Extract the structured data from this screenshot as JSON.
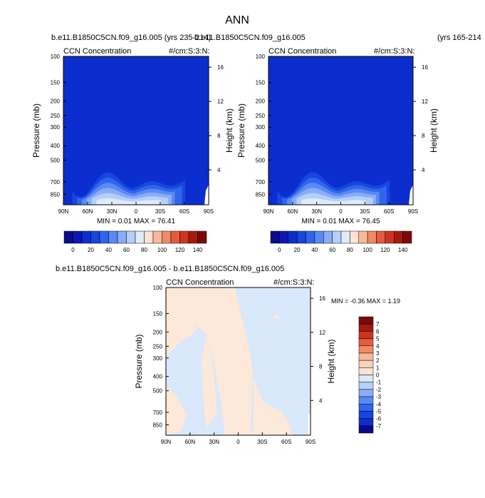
{
  "page": {
    "title": "ANN",
    "left_header": "b.e11.B1850C5CN.f09_g16.005 (yrs 235-214)",
    "right_header": "b.e11.B1850C5CN.f09_g16.005",
    "right_header_years": "(yrs 165-214",
    "diff_header": "b.e11.B1850C5CN.f09_g16.005 - b.e11.B1850C5CN.f09_g16.005"
  },
  "chart_data": [
    {
      "type": "heatmap",
      "panel": "case-1",
      "title": "CCN Concentration",
      "units": "#/cm:S:3:N:",
      "ylabel": "Pressure (mb)",
      "ylabel_right": "Height (km)",
      "x_ticks": [
        "90N",
        "60N",
        "30N",
        "0",
        "30S",
        "60S",
        "90S"
      ],
      "x": [
        90,
        60,
        30,
        0,
        -30,
        -60,
        -90
      ],
      "y_ticks": [
        "100",
        "150",
        "200",
        "250",
        "300",
        "400",
        "500",
        "700",
        "850"
      ],
      "y": [
        100,
        150,
        200,
        250,
        300,
        400,
        500,
        700,
        850
      ],
      "height_ticks": [
        "16",
        "12",
        "8",
        "4"
      ],
      "height": [
        16,
        12,
        8,
        4
      ],
      "stats": "MIN =  0.01  MAX = 76.41",
      "min": 0.01,
      "max": 76.41,
      "colorbar": {
        "labels": [
          "0",
          "20",
          "40",
          "60",
          "80",
          "100",
          "120",
          "140"
        ],
        "levels": [
          0,
          10,
          20,
          30,
          40,
          50,
          60,
          70,
          80,
          90,
          100,
          110,
          120,
          130,
          140
        ],
        "colors": [
          "#0a0a8a",
          "#0c18b4",
          "#0c2ecf",
          "#1746e0",
          "#2f66ec",
          "#5a8af2",
          "#89adf6",
          "#b6cffa",
          "#dfeafd",
          "#fde3d3",
          "#f8b89a",
          "#f18a68",
          "#e55b3f",
          "#cc3520",
          "#a51a0f",
          "#7a0a0a"
        ]
      },
      "contour_bands": [
        {
          "level": "0-10",
          "color": "#0c2ecf"
        },
        {
          "level": "10-20",
          "color": "#1746e0"
        },
        {
          "level": "20-30",
          "color": "#2f66ec"
        },
        {
          "level": "30-40",
          "color": "#5a8af2"
        },
        {
          "level": "40-50",
          "color": "#89adf6"
        },
        {
          "level": "50-60",
          "color": "#b6cffa"
        },
        {
          "level": "60-70",
          "color": "#dfeafd"
        }
      ]
    },
    {
      "type": "heatmap",
      "panel": "case-2",
      "title": "CCN Concentration",
      "units": "#/cm:S:3:N:",
      "ylabel": "Pressure (mb)",
      "ylabel_right": "Height (km)",
      "x_ticks": [
        "90N",
        "60N",
        "30N",
        "0",
        "30S",
        "60S",
        "90S"
      ],
      "x": [
        90,
        60,
        30,
        0,
        -30,
        -60,
        -90
      ],
      "y_ticks": [
        "100",
        "150",
        "200",
        "250",
        "300",
        "400",
        "500",
        "700",
        "850"
      ],
      "y": [
        100,
        150,
        200,
        250,
        300,
        400,
        500,
        700,
        850
      ],
      "height_ticks": [
        "16",
        "12",
        "8",
        "4"
      ],
      "height": [
        16,
        12,
        8,
        4
      ],
      "stats": "MIN =  0.01  MAX = 76.45",
      "min": 0.01,
      "max": 76.45,
      "colorbar": {
        "labels": [
          "0",
          "20",
          "40",
          "60",
          "80",
          "100",
          "120",
          "140"
        ],
        "levels": [
          0,
          10,
          20,
          30,
          40,
          50,
          60,
          70,
          80,
          90,
          100,
          110,
          120,
          130,
          140
        ],
        "colors": [
          "#0a0a8a",
          "#0c18b4",
          "#0c2ecf",
          "#1746e0",
          "#2f66ec",
          "#5a8af2",
          "#89adf6",
          "#b6cffa",
          "#dfeafd",
          "#fde3d3",
          "#f8b89a",
          "#f18a68",
          "#e55b3f",
          "#cc3520",
          "#a51a0f",
          "#7a0a0a"
        ]
      }
    },
    {
      "type": "heatmap",
      "panel": "difference",
      "title": "CCN Concentration",
      "units": "#/cm:S:3:N:",
      "ylabel": "Pressure (mb)",
      "ylabel_right": "Height (km)",
      "x_ticks": [
        "90N",
        "60N",
        "30N",
        "0",
        "30S",
        "60S",
        "90S"
      ],
      "x": [
        90,
        60,
        30,
        0,
        -30,
        -60,
        -90
      ],
      "y_ticks": [
        "100",
        "150",
        "200",
        "250",
        "300",
        "400",
        "500",
        "700",
        "850"
      ],
      "y": [
        100,
        150,
        200,
        250,
        300,
        400,
        500,
        700,
        850
      ],
      "height_ticks": [
        "16",
        "12",
        "8",
        "4"
      ],
      "height": [
        16,
        12,
        8,
        4
      ],
      "stats": "MIN = -0.36  MAX =  1.19",
      "min": -0.36,
      "max": 1.19,
      "colorbar": {
        "labels": [
          "7",
          "6",
          "5",
          "4",
          "3",
          "2",
          "1",
          "0",
          "-1",
          "-2",
          "-3",
          "-4",
          "-5",
          "-6",
          "-7"
        ],
        "levels": [
          7,
          6,
          5,
          4,
          3,
          2,
          1,
          0,
          -1,
          -2,
          -3,
          -4,
          -5,
          -6,
          -7
        ],
        "colors": [
          "#7a0a0a",
          "#a51a0f",
          "#cc3520",
          "#e55b3f",
          "#f18a68",
          "#f8b89a",
          "#fad2bb",
          "#fde3d3",
          "#dce9fb",
          "#b6cffa",
          "#89adf6",
          "#5a8af2",
          "#2f66ec",
          "#1746e0",
          "#0c2ecf",
          "#0a0a8a"
        ]
      },
      "fill_colors": {
        "positive": "#fde9d9",
        "negative": "#d9e8fb"
      }
    }
  ]
}
